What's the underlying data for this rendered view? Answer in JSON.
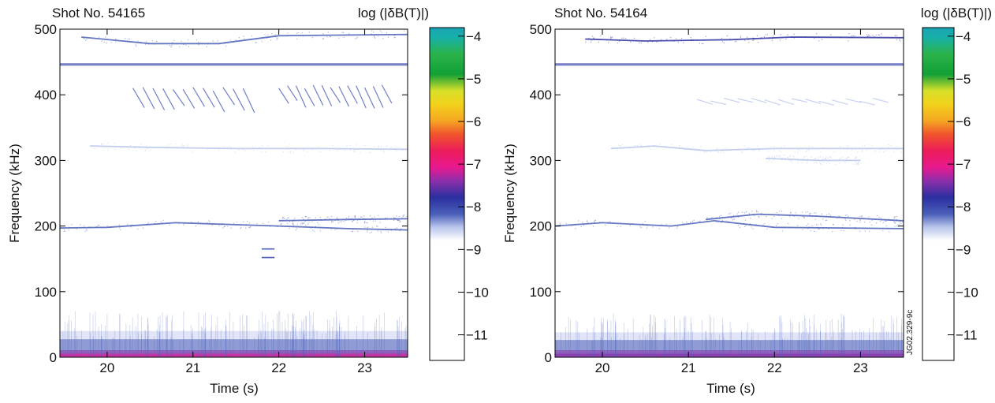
{
  "chart_data": [
    {
      "type": "heatmap",
      "title": "Shot No. 54165",
      "xlabel": "Time (s)",
      "ylabel": "Frequency (kHz)",
      "xlim": [
        19.45,
        23.5
      ],
      "ylim": [
        0,
        500
      ],
      "x_ticks": [
        20,
        21,
        22,
        23
      ],
      "y_ticks": [
        0,
        100,
        200,
        300,
        400,
        500
      ],
      "grid": false,
      "colorbar": {
        "label": "log (|δB(T)|)",
        "range": [
          -11.6,
          -3.8
        ],
        "ticks": [
          -4,
          -5,
          -6,
          -7,
          -8,
          -9,
          -10,
          -11
        ]
      },
      "features": [
        {
          "kind": "band",
          "t_start": 19.45,
          "t_end": 23.5,
          "f_center": 12,
          "f_width": 28,
          "level": -5.6
        },
        {
          "kind": "line",
          "t_start": 19.45,
          "t_end": 23.5,
          "f": 447,
          "level": -6.4
        },
        {
          "kind": "line",
          "t_start": 19.45,
          "t_end": 23.5,
          "f": 445,
          "level": -6.5
        },
        {
          "kind": "mode",
          "t_start": 19.7,
          "t_end": 23.5,
          "f_points": [
            [
              19.7,
              488
            ],
            [
              20.5,
              478
            ],
            [
              21.3,
              478
            ],
            [
              22.0,
              490
            ],
            [
              23.5,
              492
            ]
          ],
          "level": -6.6
        },
        {
          "kind": "mode",
          "t_start": 19.45,
          "t_end": 23.5,
          "f_points": [
            [
              19.45,
              197
            ],
            [
              20.0,
              198
            ],
            [
              20.8,
              205
            ],
            [
              21.5,
              202
            ],
            [
              22.0,
              200
            ],
            [
              22.8,
              196
            ],
            [
              23.5,
              194
            ]
          ],
          "level": -6.5
        },
        {
          "kind": "mode",
          "t_start": 22.0,
          "t_end": 23.5,
          "f_points": [
            [
              22.0,
              208
            ],
            [
              22.8,
              210
            ],
            [
              23.5,
              211
            ]
          ],
          "level": -6.8
        },
        {
          "kind": "mode",
          "t_start": 19.8,
          "t_end": 23.5,
          "f_points": [
            [
              19.8,
              322
            ],
            [
              20.5,
              320
            ],
            [
              21.5,
              318
            ],
            [
              22.5,
              318
            ],
            [
              23.5,
              317
            ]
          ],
          "level": -7.1
        },
        {
          "kind": "chirps",
          "t_start": 20.3,
          "t_end": 21.7,
          "count": 12,
          "f_top": 412,
          "f_bottom": 378,
          "level": -6.6
        },
        {
          "kind": "chirps",
          "t_start": 22.0,
          "t_end": 23.3,
          "count": 13,
          "f_top": 415,
          "f_bottom": 384,
          "level": -6.6
        },
        {
          "kind": "blip",
          "t_start": 21.8,
          "t_end": 21.95,
          "f": 165,
          "level": -6.8
        },
        {
          "kind": "blip",
          "t_start": 21.8,
          "t_end": 21.95,
          "f": 152,
          "level": -6.8
        }
      ]
    },
    {
      "type": "heatmap",
      "title": "Shot No. 54164",
      "xlabel": "Time (s)",
      "ylabel": "Frequency (kHz)",
      "xlim": [
        19.45,
        23.5
      ],
      "ylim": [
        0,
        500
      ],
      "x_ticks": [
        20,
        21,
        22,
        23
      ],
      "y_ticks": [
        0,
        100,
        200,
        300,
        400,
        500
      ],
      "grid": false,
      "annotation": "JG02.329-9c",
      "colorbar": {
        "label": "log (|δB(T)|)",
        "range": [
          -11.6,
          -3.8
        ],
        "ticks": [
          -4,
          -5,
          -6,
          -7,
          -8,
          -9,
          -10,
          -11
        ]
      },
      "features": [
        {
          "kind": "band",
          "t_start": 19.45,
          "t_end": 23.5,
          "f_center": 12,
          "f_width": 26,
          "level": -5.9
        },
        {
          "kind": "line",
          "t_start": 19.45,
          "t_end": 23.5,
          "f": 447,
          "level": -6.4
        },
        {
          "kind": "line",
          "t_start": 19.45,
          "t_end": 23.5,
          "f": 445,
          "level": -6.5
        },
        {
          "kind": "mode",
          "t_start": 19.8,
          "t_end": 23.5,
          "f_points": [
            [
              19.8,
              485
            ],
            [
              20.5,
              482
            ],
            [
              21.5,
              484
            ],
            [
              22.2,
              488
            ],
            [
              23.5,
              487
            ]
          ],
          "level": -6.4
        },
        {
          "kind": "mode",
          "t_start": 19.45,
          "t_end": 23.5,
          "f_points": [
            [
              19.45,
              200
            ],
            [
              20.0,
              205
            ],
            [
              20.8,
              200
            ],
            [
              21.3,
              208
            ],
            [
              22.0,
              198
            ],
            [
              22.8,
              197
            ],
            [
              23.5,
              196
            ]
          ],
          "level": -6.5
        },
        {
          "kind": "mode",
          "t_start": 21.2,
          "t_end": 23.5,
          "f_points": [
            [
              21.2,
              210
            ],
            [
              21.8,
              218
            ],
            [
              22.5,
              215
            ],
            [
              23.5,
              208
            ]
          ],
          "level": -6.7
        },
        {
          "kind": "mode",
          "t_start": 20.1,
          "t_end": 23.5,
          "f_points": [
            [
              20.1,
              318
            ],
            [
              20.6,
              322
            ],
            [
              21.2,
              315
            ],
            [
              22.0,
              318
            ],
            [
              23.5,
              318
            ]
          ],
          "level": -7.0
        },
        {
          "kind": "mode",
          "t_start": 21.9,
          "t_end": 23.0,
          "f_points": [
            [
              21.9,
              303
            ],
            [
              22.5,
              300
            ],
            [
              23.0,
              300
            ]
          ],
          "level": -7.3
        },
        {
          "kind": "chirps",
          "t_start": 21.1,
          "t_end": 23.3,
          "count": 14,
          "f_top": 395,
          "f_bottom": 388,
          "level": -7.2
        }
      ]
    }
  ]
}
